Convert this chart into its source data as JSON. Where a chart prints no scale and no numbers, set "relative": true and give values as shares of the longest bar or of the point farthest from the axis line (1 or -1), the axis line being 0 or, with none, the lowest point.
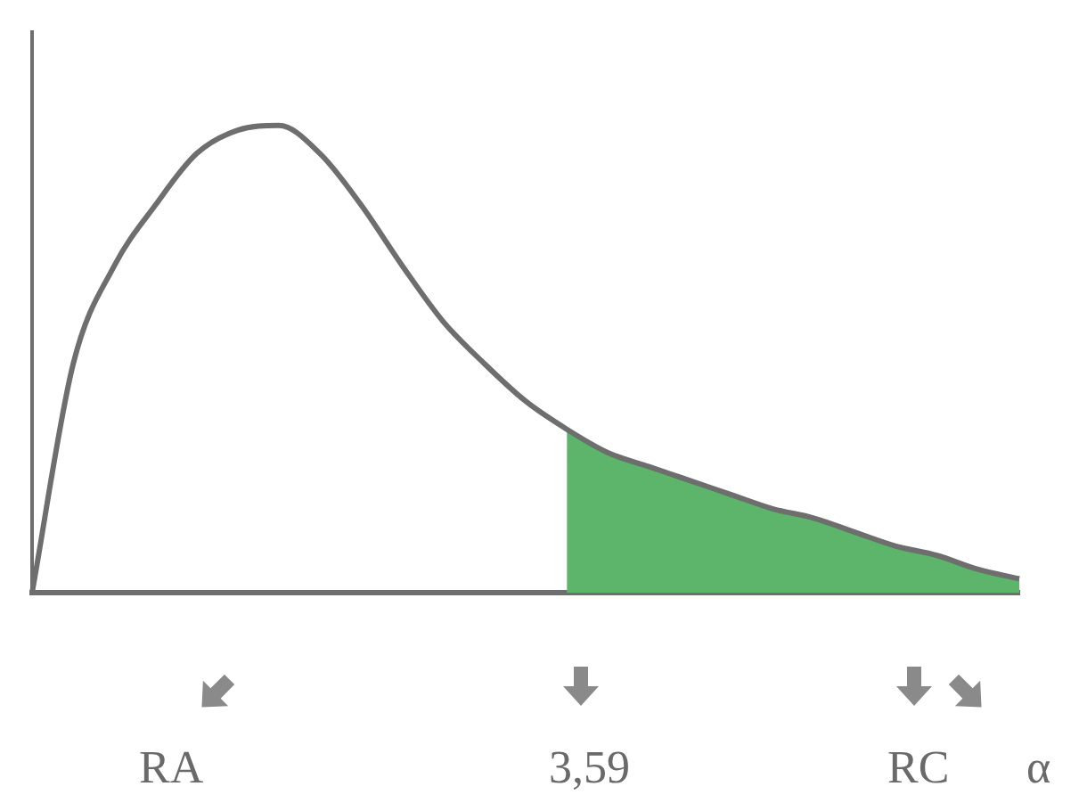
{
  "chart_data": {
    "type": "line",
    "relative": true,
    "grid": false,
    "legend": false,
    "marker": "none",
    "categories": [
      null,
      null,
      null,
      null,
      null,
      null,
      null,
      null,
      null,
      null,
      null,
      null,
      null,
      null,
      null,
      null,
      null,
      null,
      null,
      null,
      null,
      null,
      null,
      null,
      null
    ],
    "series": [
      {
        "color": "#6e6e6e",
        "values": [
          0,
          0.49,
          0.7,
          0.83,
          0.94,
          0.99,
          1,
          0.94,
          0.83,
          0.7,
          0.58,
          0.49,
          0.41,
          0.35,
          0.3,
          0.27,
          0.24,
          0.21,
          0.18,
          0.16,
          0.13,
          0.1,
          0.08,
          0.05,
          0.03
        ]
      },
      {
        "type": "area",
        "color": "#5cb56a",
        "values": [
          null,
          null,
          null,
          null,
          null,
          null,
          null,
          null,
          null,
          null,
          null,
          null,
          null,
          0.35,
          0.3,
          0.27,
          0.24,
          0.21,
          0.18,
          0.16,
          0.13,
          0.1,
          0.08,
          0.05,
          0.03
        ]
      }
    ],
    "annotations": [
      "RA",
      "3,59",
      "RC",
      "α"
    ]
  }
}
